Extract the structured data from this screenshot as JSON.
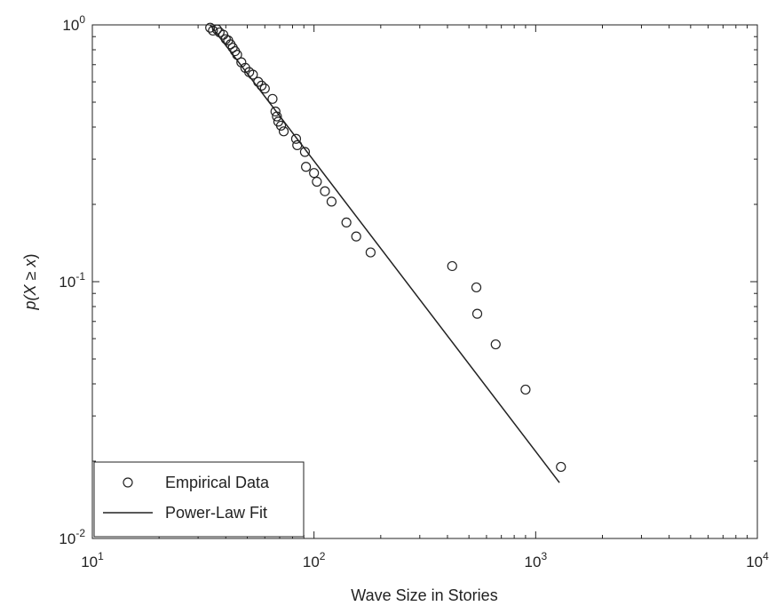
{
  "chart_data": {
    "type": "scatter",
    "xlabel": "Wave Size in Stories",
    "ylabel_parts": [
      "p(",
      "X",
      " ≥ ",
      "x",
      ")"
    ],
    "xscale": "log",
    "yscale": "log",
    "xlim": [
      10,
      10000
    ],
    "ylim": [
      0.01,
      1
    ],
    "xticks": [
      {
        "value": 10,
        "base": "10",
        "exp": "1"
      },
      {
        "value": 100,
        "base": "10",
        "exp": "2"
      },
      {
        "value": 1000,
        "base": "10",
        "exp": "3"
      },
      {
        "value": 10000,
        "base": "10",
        "exp": "4"
      }
    ],
    "yticks": [
      {
        "value": 0.01,
        "base": "10",
        "exp": "-2"
      },
      {
        "value": 0.1,
        "base": "10",
        "exp": "-1"
      },
      {
        "value": 1,
        "base": "10",
        "exp": "0"
      }
    ],
    "grid": false,
    "legend": {
      "placement": "bottom-left",
      "entries": [
        "Empirical Data",
        "Power-Law Fit"
      ]
    },
    "series": [
      {
        "name": "Empirical Data",
        "kind": "scatter",
        "marker": "open-circle",
        "x": [
          34,
          35,
          36.5,
          37.5,
          39,
          40,
          41,
          42,
          43,
          44,
          45,
          47,
          49,
          51,
          53,
          56,
          58,
          60,
          65,
          67,
          68,
          69,
          71,
          73,
          83,
          84,
          91,
          92,
          100,
          103,
          112,
          120,
          140,
          155,
          180,
          420,
          540,
          545,
          660,
          900,
          1300
        ],
        "y": [
          0.975,
          0.95,
          0.96,
          0.935,
          0.915,
          0.88,
          0.87,
          0.84,
          0.815,
          0.79,
          0.765,
          0.715,
          0.68,
          0.655,
          0.64,
          0.6,
          0.58,
          0.565,
          0.515,
          0.46,
          0.44,
          0.42,
          0.405,
          0.385,
          0.36,
          0.34,
          0.32,
          0.28,
          0.265,
          0.245,
          0.225,
          0.205,
          0.17,
          0.15,
          0.13,
          0.115,
          0.095,
          0.075,
          0.057,
          0.038,
          0.019
        ]
      },
      {
        "name": "Power-Law Fit",
        "kind": "line",
        "x": [
          34,
          1280
        ],
        "y": [
          1.0,
          0.0165
        ]
      }
    ]
  }
}
